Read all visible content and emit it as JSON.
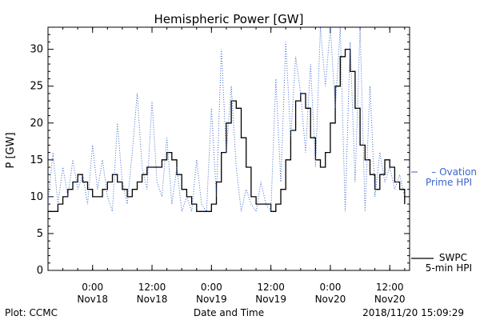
{
  "chart_data": {
    "type": "line",
    "title": "Hemispheric Power [GW]",
    "xlabel": "Date and Time",
    "ylabel": "P [GW]",
    "ylim": [
      0,
      33
    ],
    "yticks": [
      0,
      5,
      10,
      15,
      20,
      25,
      30
    ],
    "xlim": [
      "2018-11-17 15:00",
      "2018-11-20 16:00"
    ],
    "xticks": [
      {
        "time": "2018-11-18 00:00",
        "label1": "0:00",
        "label2": "Nov18"
      },
      {
        "time": "2018-11-18 12:00",
        "label1": "12:00",
        "label2": "Nov18"
      },
      {
        "time": "2018-11-19 00:00",
        "label1": "0:00",
        "label2": "Nov19"
      },
      {
        "time": "2018-11-19 12:00",
        "label1": "12:00",
        "label2": "Nov19"
      },
      {
        "time": "2018-11-20 00:00",
        "label1": "0:00",
        "label2": "Nov20"
      },
      {
        "time": "2018-11-20 12:00",
        "label1": "12:00",
        "label2": "Nov20"
      }
    ],
    "grid": false,
    "legend_position": "right",
    "series": [
      {
        "name": "SWPC 5-min HPI",
        "legend_lines": [
          "SWPC",
          "5-min HPI"
        ],
        "color": "#000000",
        "style": "solid",
        "points": [
          [
            "2018-11-17 15:00",
            8
          ],
          [
            "2018-11-17 16:00",
            8
          ],
          [
            "2018-11-17 17:00",
            9
          ],
          [
            "2018-11-17 18:00",
            10
          ],
          [
            "2018-11-17 19:00",
            11
          ],
          [
            "2018-11-17 20:00",
            12
          ],
          [
            "2018-11-17 21:00",
            13
          ],
          [
            "2018-11-17 22:00",
            12
          ],
          [
            "2018-11-17 23:00",
            11
          ],
          [
            "2018-11-18 00:00",
            10
          ],
          [
            "2018-11-18 01:00",
            10
          ],
          [
            "2018-11-18 02:00",
            11
          ],
          [
            "2018-11-18 03:00",
            12
          ],
          [
            "2018-11-18 04:00",
            13
          ],
          [
            "2018-11-18 05:00",
            12
          ],
          [
            "2018-11-18 06:00",
            11
          ],
          [
            "2018-11-18 07:00",
            10
          ],
          [
            "2018-11-18 08:00",
            11
          ],
          [
            "2018-11-18 09:00",
            12
          ],
          [
            "2018-11-18 10:00",
            13
          ],
          [
            "2018-11-18 11:00",
            14
          ],
          [
            "2018-11-18 12:00",
            14
          ],
          [
            "2018-11-18 13:00",
            14
          ],
          [
            "2018-11-18 14:00",
            15
          ],
          [
            "2018-11-18 15:00",
            16
          ],
          [
            "2018-11-18 16:00",
            15
          ],
          [
            "2018-11-18 17:00",
            13
          ],
          [
            "2018-11-18 18:00",
            11
          ],
          [
            "2018-11-18 19:00",
            10
          ],
          [
            "2018-11-18 20:00",
            9
          ],
          [
            "2018-11-18 21:00",
            8
          ],
          [
            "2018-11-18 22:00",
            8
          ],
          [
            "2018-11-18 23:00",
            8
          ],
          [
            "2018-11-19 00:00",
            9
          ],
          [
            "2018-11-19 01:00",
            12
          ],
          [
            "2018-11-19 02:00",
            16
          ],
          [
            "2018-11-19 03:00",
            20
          ],
          [
            "2018-11-19 04:00",
            23
          ],
          [
            "2018-11-19 05:00",
            22
          ],
          [
            "2018-11-19 06:00",
            18
          ],
          [
            "2018-11-19 07:00",
            14
          ],
          [
            "2018-11-19 08:00",
            10
          ],
          [
            "2018-11-19 09:00",
            9
          ],
          [
            "2018-11-19 10:00",
            9
          ],
          [
            "2018-11-19 11:00",
            9
          ],
          [
            "2018-11-19 12:00",
            8
          ],
          [
            "2018-11-19 13:00",
            9
          ],
          [
            "2018-11-19 14:00",
            11
          ],
          [
            "2018-11-19 15:00",
            15
          ],
          [
            "2018-11-19 16:00",
            19
          ],
          [
            "2018-11-19 17:00",
            23
          ],
          [
            "2018-11-19 18:00",
            24
          ],
          [
            "2018-11-19 19:00",
            22
          ],
          [
            "2018-11-19 20:00",
            18
          ],
          [
            "2018-11-19 21:00",
            15
          ],
          [
            "2018-11-19 22:00",
            14
          ],
          [
            "2018-11-19 23:00",
            16
          ],
          [
            "2018-11-20 00:00",
            20
          ],
          [
            "2018-11-20 01:00",
            25
          ],
          [
            "2018-11-20 02:00",
            29
          ],
          [
            "2018-11-20 03:00",
            30
          ],
          [
            "2018-11-20 04:00",
            27
          ],
          [
            "2018-11-20 05:00",
            22
          ],
          [
            "2018-11-20 06:00",
            17
          ],
          [
            "2018-11-20 07:00",
            15
          ],
          [
            "2018-11-20 08:00",
            13
          ],
          [
            "2018-11-20 09:00",
            11
          ],
          [
            "2018-11-20 10:00",
            13
          ],
          [
            "2018-11-20 11:00",
            15
          ],
          [
            "2018-11-20 12:00",
            14
          ],
          [
            "2018-11-20 13:00",
            12
          ],
          [
            "2018-11-20 14:00",
            11
          ],
          [
            "2018-11-20 15:00",
            9
          ]
        ]
      },
      {
        "name": "Ovation Prime HPI",
        "legend_lines": [
          "– Ovation",
          "Prime HPI"
        ],
        "color": "#3a66c8",
        "style": "dotted",
        "points": [
          [
            "2018-11-17 15:00",
            9
          ],
          [
            "2018-11-17 16:00",
            16
          ],
          [
            "2018-11-17 17:00",
            9
          ],
          [
            "2018-11-17 18:00",
            14
          ],
          [
            "2018-11-17 19:00",
            10
          ],
          [
            "2018-11-17 20:00",
            15
          ],
          [
            "2018-11-17 21:00",
            11
          ],
          [
            "2018-11-17 22:00",
            13
          ],
          [
            "2018-11-17 23:00",
            9
          ],
          [
            "2018-11-18 00:00",
            17
          ],
          [
            "2018-11-18 01:00",
            11
          ],
          [
            "2018-11-18 02:00",
            15
          ],
          [
            "2018-11-18 03:00",
            10
          ],
          [
            "2018-11-18 04:00",
            8
          ],
          [
            "2018-11-18 05:00",
            20
          ],
          [
            "2018-11-18 06:00",
            12
          ],
          [
            "2018-11-18 07:00",
            9
          ],
          [
            "2018-11-18 08:00",
            16
          ],
          [
            "2018-11-18 09:00",
            24
          ],
          [
            "2018-11-18 10:00",
            14
          ],
          [
            "2018-11-18 11:00",
            11
          ],
          [
            "2018-11-18 12:00",
            23
          ],
          [
            "2018-11-18 13:00",
            12
          ],
          [
            "2018-11-18 14:00",
            10
          ],
          [
            "2018-11-18 15:00",
            18
          ],
          [
            "2018-11-18 16:00",
            9
          ],
          [
            "2018-11-18 17:00",
            14
          ],
          [
            "2018-11-18 18:00",
            8
          ],
          [
            "2018-11-18 19:00",
            10
          ],
          [
            "2018-11-18 20:00",
            8
          ],
          [
            "2018-11-18 21:00",
            15
          ],
          [
            "2018-11-18 22:00",
            9
          ],
          [
            "2018-11-18 23:00",
            8
          ],
          [
            "2018-11-19 00:00",
            22
          ],
          [
            "2018-11-19 01:00",
            10
          ],
          [
            "2018-11-19 02:00",
            30
          ],
          [
            "2018-11-19 03:00",
            16
          ],
          [
            "2018-11-19 04:00",
            25
          ],
          [
            "2018-11-19 05:00",
            14
          ],
          [
            "2018-11-19 06:00",
            8
          ],
          [
            "2018-11-19 07:00",
            11
          ],
          [
            "2018-11-19 08:00",
            9
          ],
          [
            "2018-11-19 09:00",
            8
          ],
          [
            "2018-11-19 10:00",
            12
          ],
          [
            "2018-11-19 11:00",
            9
          ],
          [
            "2018-11-19 12:00",
            8
          ],
          [
            "2018-11-19 13:00",
            26
          ],
          [
            "2018-11-19 14:00",
            12
          ],
          [
            "2018-11-19 15:00",
            31
          ],
          [
            "2018-11-19 16:00",
            18
          ],
          [
            "2018-11-19 17:00",
            29
          ],
          [
            "2018-11-19 18:00",
            24
          ],
          [
            "2018-11-19 19:00",
            16
          ],
          [
            "2018-11-19 20:00",
            28
          ],
          [
            "2018-11-19 21:00",
            14
          ],
          [
            "2018-11-19 22:00",
            33
          ],
          [
            "2018-11-19 23:00",
            25
          ],
          [
            "2018-11-20 00:00",
            33
          ],
          [
            "2018-11-20 01:00",
            22
          ],
          [
            "2018-11-20 02:00",
            33
          ],
          [
            "2018-11-20 03:00",
            8
          ],
          [
            "2018-11-20 04:00",
            31
          ],
          [
            "2018-11-20 05:00",
            12
          ],
          [
            "2018-11-20 06:00",
            33
          ],
          [
            "2018-11-20 07:00",
            8
          ],
          [
            "2018-11-20 08:00",
            25
          ],
          [
            "2018-11-20 09:00",
            10
          ],
          [
            "2018-11-20 10:00",
            16
          ],
          [
            "2018-11-20 11:00",
            12
          ],
          [
            "2018-11-20 12:00",
            14
          ],
          [
            "2018-11-20 13:00",
            11
          ],
          [
            "2018-11-20 14:00",
            13
          ],
          [
            "2018-11-20 15:00",
            10
          ]
        ]
      }
    ]
  },
  "footer": {
    "plot_credit": "Plot: CCMC",
    "timestamp": "2018/11/20 15:09:29"
  }
}
